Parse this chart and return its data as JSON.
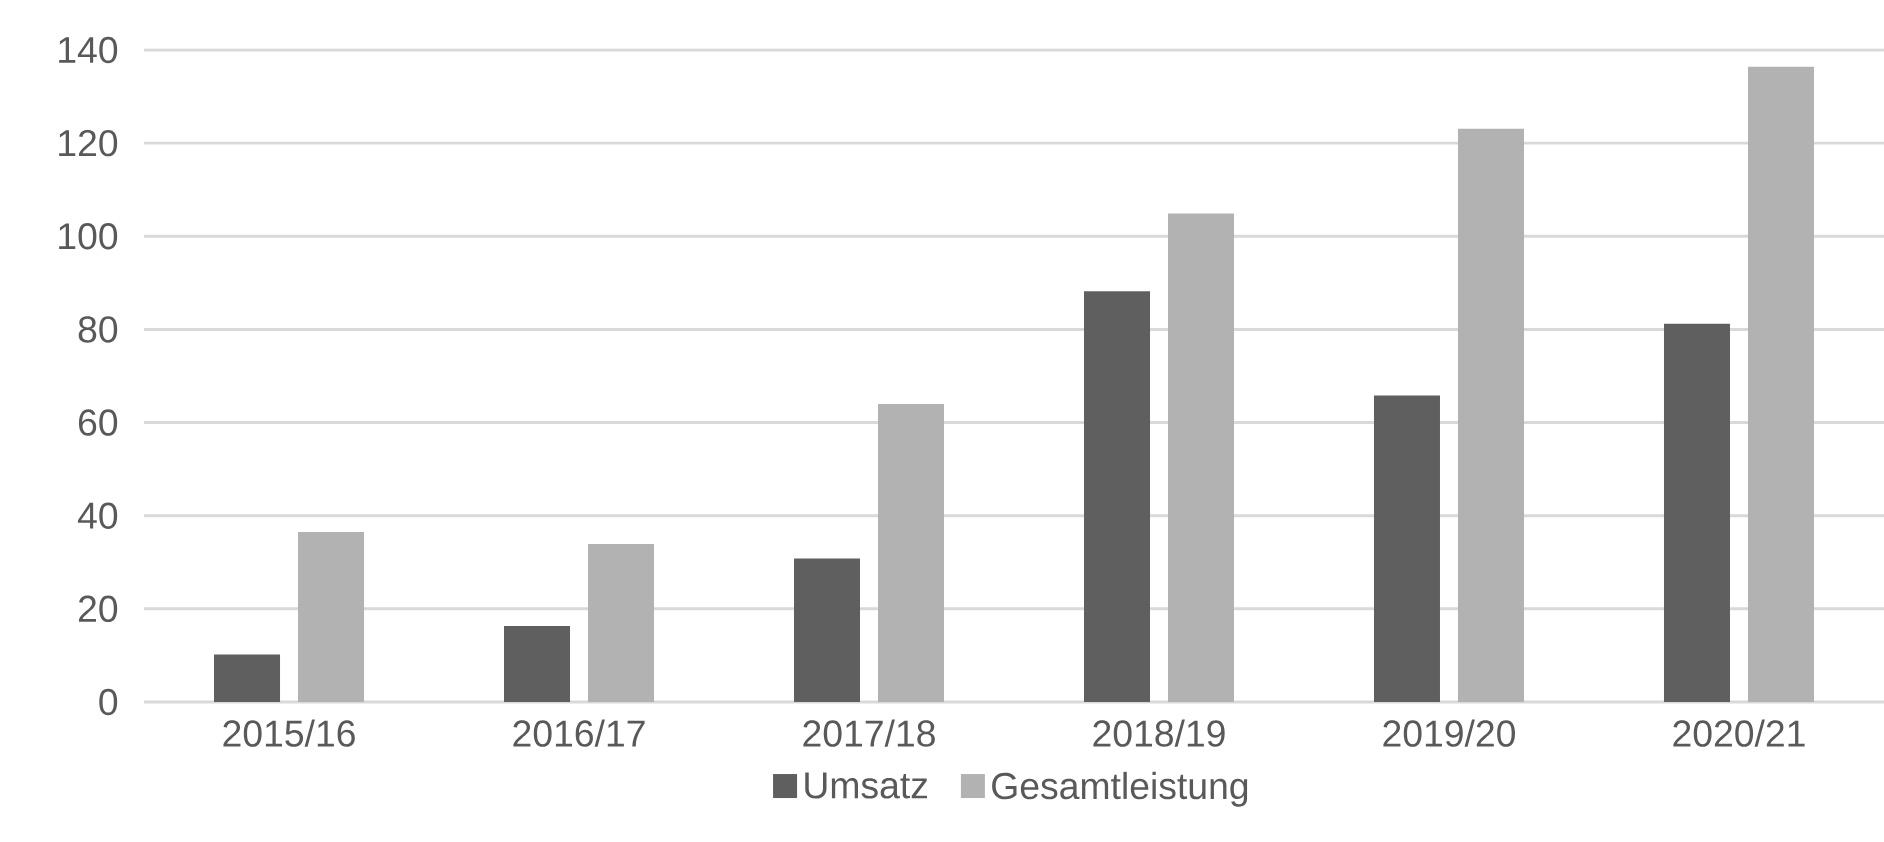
{
  "chart_data": {
    "type": "bar",
    "categories": [
      "2015/16",
      "2016/17",
      "2017/18",
      "2018/19",
      "2019/20",
      "2020/21"
    ],
    "series": [
      {
        "name": "Umsatz",
        "color": "#5f5f5f",
        "values": [
          10.2,
          16.3,
          30.8,
          88.2,
          65.8,
          81.2
        ]
      },
      {
        "name": "Gesamtleistung",
        "color": "#b2b2b2",
        "values": [
          36.5,
          33.9,
          64,
          104.9,
          123.1,
          136.4
        ]
      }
    ],
    "ylim": [
      0,
      140
    ],
    "yticks": [
      0,
      20,
      40,
      60,
      80,
      100,
      120,
      140
    ],
    "grid": "y",
    "legend": "bottom"
  }
}
